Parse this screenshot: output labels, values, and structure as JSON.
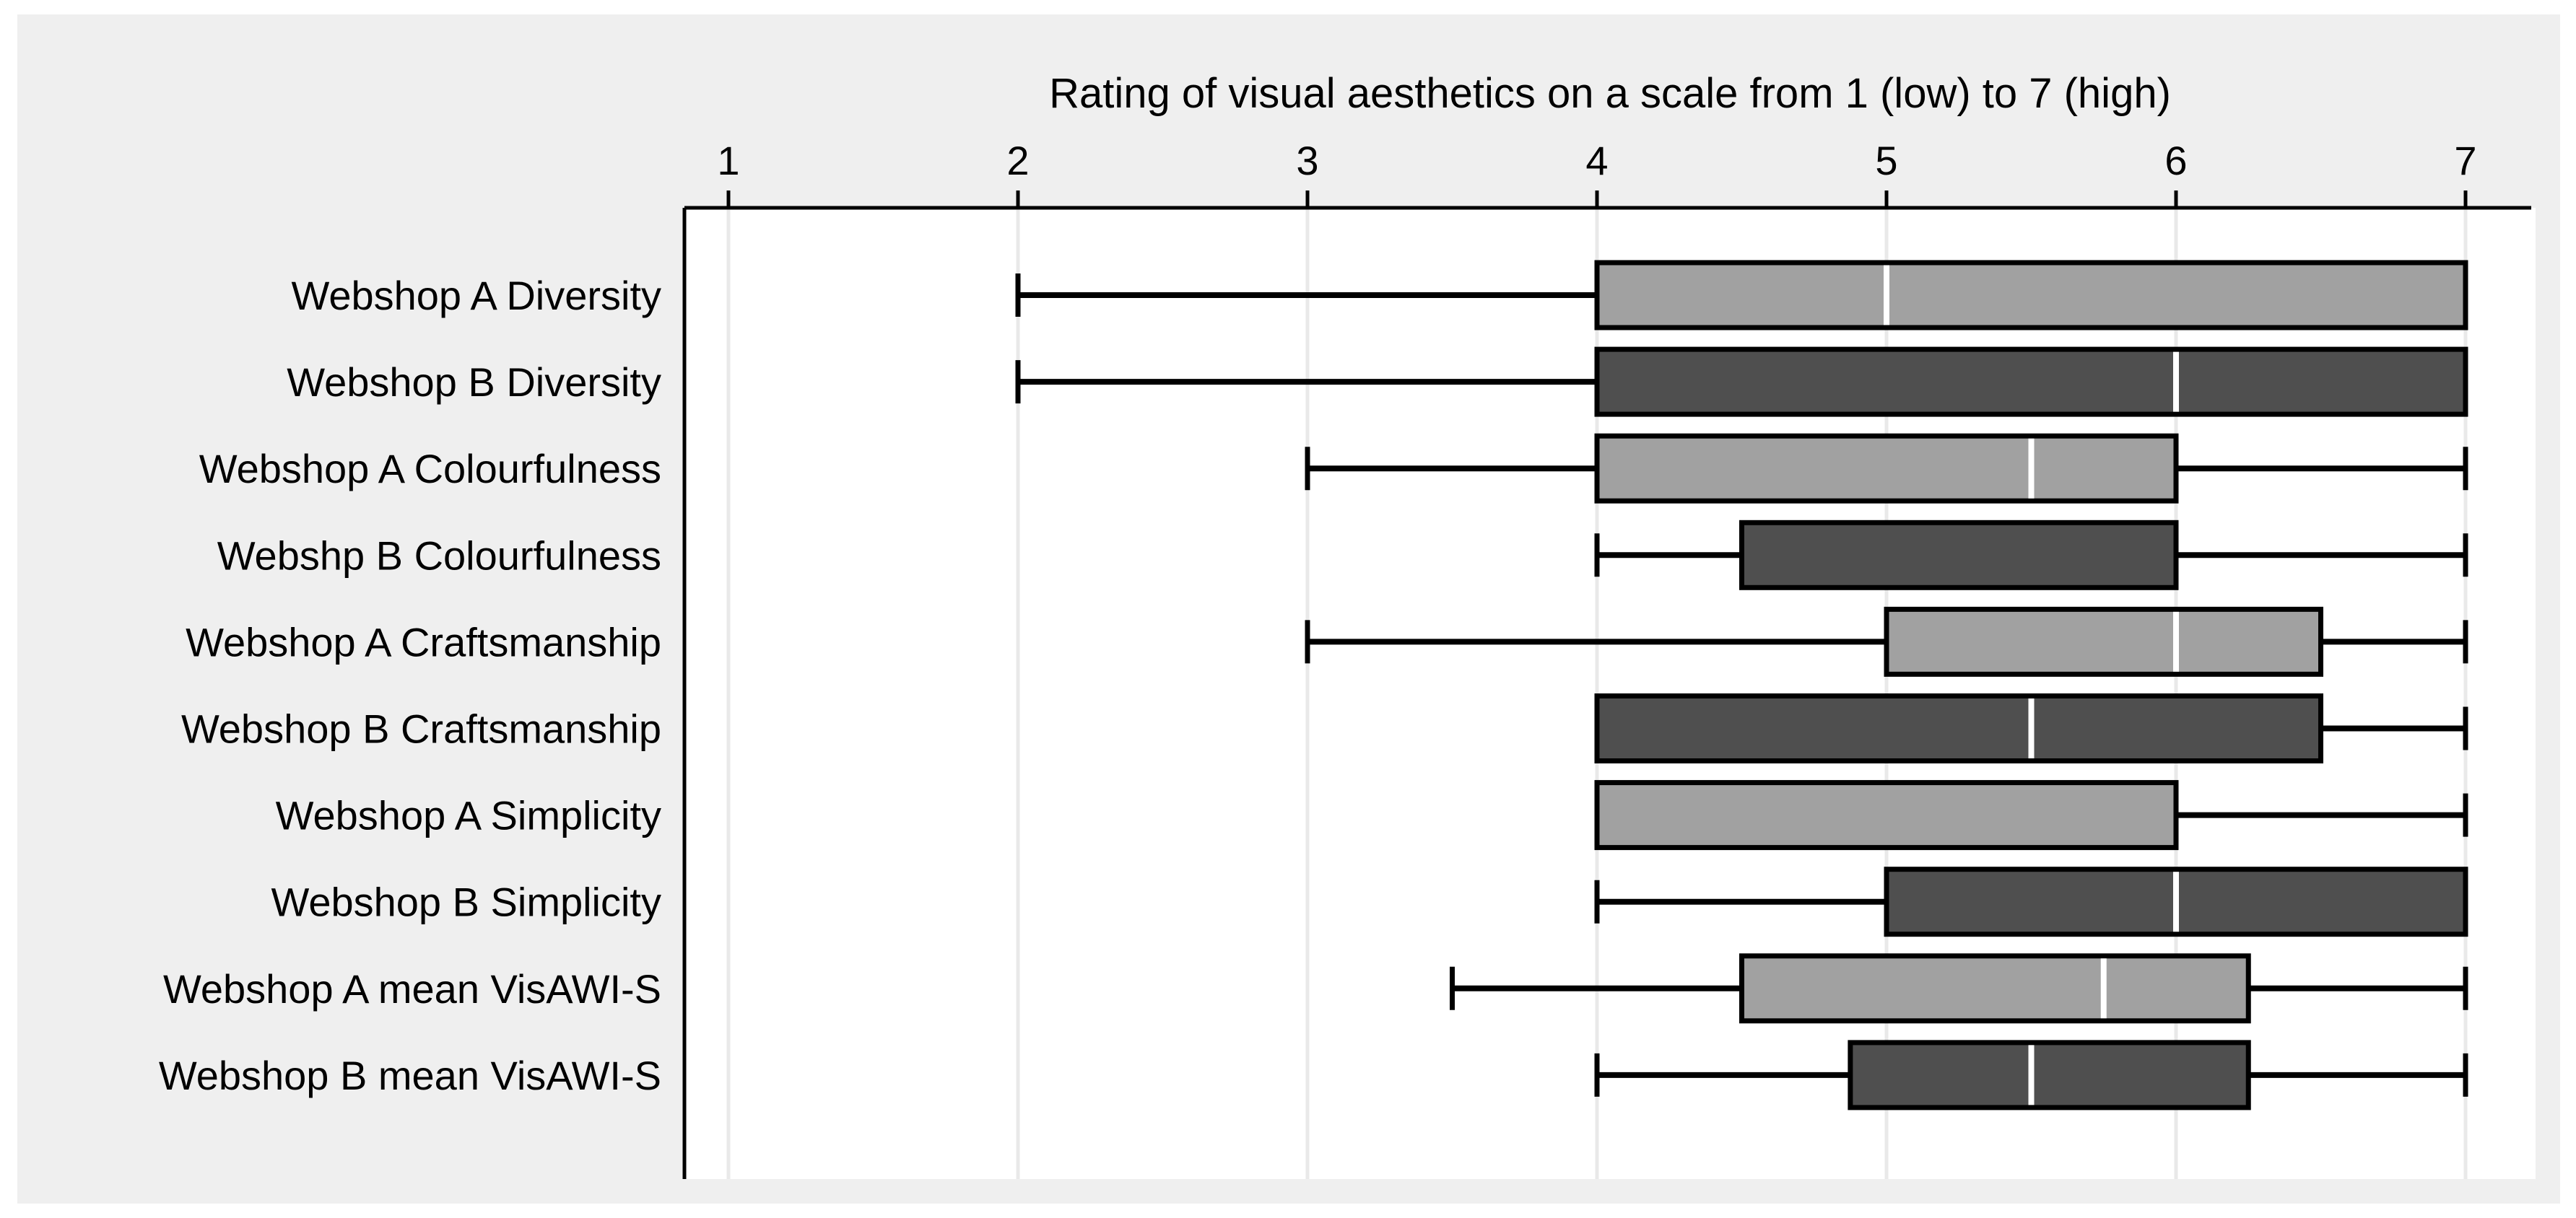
{
  "chart_data": {
    "type": "boxplot",
    "orientation": "horizontal",
    "title": "Rating of visual aesthetics on a scale from 1 (low) to 7 (high)",
    "axis": {
      "position": "top",
      "min": 1,
      "max": 7,
      "ticks": [
        1,
        2,
        3,
        4,
        5,
        6,
        7
      ],
      "grid": true
    },
    "groups": [
      {
        "name": "Webshop A",
        "box_fill": "#a1a1a1"
      },
      {
        "name": "Webshop B",
        "box_fill": "#4f4f4f"
      }
    ],
    "rows": [
      {
        "label": "Webshop A Diversity",
        "group": "A",
        "whisker_low": 2,
        "q1": 4,
        "median": 5,
        "q3": 7,
        "whisker_high": 7
      },
      {
        "label": "Webshop B Diversity",
        "group": "B",
        "whisker_low": 2,
        "q1": 4,
        "median": 6,
        "q3": 7,
        "whisker_high": 7
      },
      {
        "label": "Webshop A Colourfulness",
        "group": "A",
        "whisker_low": 3,
        "q1": 4,
        "median": 5.5,
        "q3": 6,
        "whisker_high": 7
      },
      {
        "label": "Webshp B Colourfulness",
        "group": "B",
        "whisker_low": 4,
        "q1": 4.5,
        "median": null,
        "q3": 6,
        "whisker_high": 7
      },
      {
        "label": "Webshop A Craftsmanship",
        "group": "A",
        "whisker_low": 3,
        "q1": 5,
        "median": 6,
        "q3": 6.5,
        "whisker_high": 7
      },
      {
        "label": "Webshop B Craftsmanship",
        "group": "B",
        "whisker_low": 4,
        "q1": 4,
        "median": 5.5,
        "q3": 6.5,
        "whisker_high": 7
      },
      {
        "label": "Webshop A Simplicity",
        "group": "A",
        "whisker_low": 4,
        "q1": 4,
        "median": null,
        "q3": 6,
        "whisker_high": 7
      },
      {
        "label": "Webshop B Simplicity",
        "group": "B",
        "whisker_low": 4,
        "q1": 5,
        "median": 6,
        "q3": 7,
        "whisker_high": 7
      },
      {
        "label": "Webshop A mean VisAWI-S",
        "group": "A",
        "whisker_low": 3.5,
        "q1": 4.5,
        "median": 5.75,
        "q3": 6.25,
        "whisker_high": 7
      },
      {
        "label": "Webshop B mean VisAWI-S",
        "group": "B",
        "whisker_low": 4,
        "q1": 4.875,
        "median": 5.5,
        "q3": 6.25,
        "whisker_high": 7
      }
    ]
  },
  "colors": {
    "page_background": "#ffffff",
    "panel_background": "#efefef",
    "plot_background": "#ffffff",
    "gridline": "#e9e9e9",
    "axis": "#000000",
    "box_border": "#000000",
    "whisker": "#000000",
    "median_line": "#ffffff",
    "box_fill_light": "#a1a1a1",
    "box_fill_dark": "#4f4f4f",
    "text": "#000000"
  }
}
